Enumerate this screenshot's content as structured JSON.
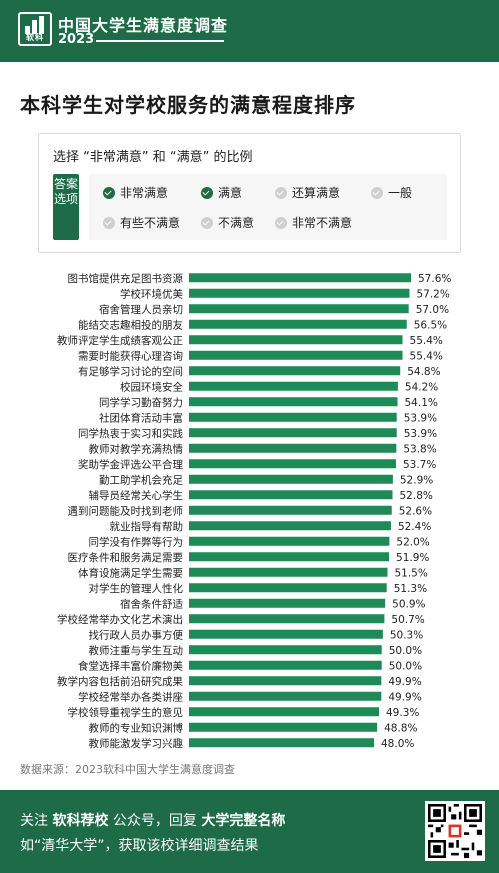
{
  "header": {
    "logo_text": "软科",
    "title": "中国大学生满意度调查",
    "year": "2023"
  },
  "main_title": "本科学生对学校服务的满意程度排序",
  "filter": {
    "question": "选择 “非常满意” 和 “满意” 的比例",
    "answer_tag": "答案选项",
    "options": [
      {
        "label": "非常满意",
        "checked": true
      },
      {
        "label": "满意",
        "checked": true
      },
      {
        "label": "还算满意",
        "checked": false
      },
      {
        "label": "一般",
        "checked": false
      },
      {
        "label": "有些不满意",
        "checked": false
      },
      {
        "label": "不满意",
        "checked": false
      },
      {
        "label": "非常不满意",
        "checked": false
      }
    ]
  },
  "chart_data": {
    "type": "bar",
    "orientation": "horizontal",
    "bar_color": "#1d8a57",
    "value_suffix": "%",
    "xlim": [
      0,
      57.6
    ],
    "categories": [
      "图书馆提供充足图书资源",
      "学校环境优美",
      "宿舍管理人员亲切",
      "能结交志趣相投的朋友",
      "教师评定学生成绩客观公正",
      "需要时能获得心理咨询",
      "有足够学习讨论的空间",
      "校园环境安全",
      "同学学习勤奋努力",
      "社团体育活动丰富",
      "同学热衷于实习和实践",
      "教师对教学充满热情",
      "奖助学金评选公平合理",
      "勤工助学机会充足",
      "辅导员经常关心学生",
      "遇到问题能及时找到老师",
      "就业指导有帮助",
      "同学没有作弊等行为",
      "医疗条件和服务满足需要",
      "体育设施满足学生需要",
      "对学生的管理人性化",
      "宿舍条件舒适",
      "学校经常举办文化艺术演出",
      "找行政人员办事方便",
      "教师注重与学生互动",
      "食堂选择丰富价廉物美",
      "教学内容包括前沿研究成果",
      "学校经常举办各类讲座",
      "学校领导重视学生的意见",
      "教师的专业知识渊博",
      "教师能激发学习兴趣"
    ],
    "values": [
      57.6,
      57.2,
      57.0,
      56.5,
      55.4,
      55.4,
      54.8,
      54.2,
      54.1,
      53.9,
      53.9,
      53.8,
      53.7,
      52.9,
      52.8,
      52.6,
      52.4,
      52.0,
      51.9,
      51.5,
      51.3,
      50.9,
      50.7,
      50.3,
      50.0,
      50.0,
      49.9,
      49.9,
      49.3,
      48.8,
      48.0
    ],
    "value_labels": [
      "57.6%",
      "57.2%",
      "57.0%",
      "56.5%",
      "55.4%",
      "55.4%",
      "54.8%",
      "54.2%",
      "54.1%",
      "53.9%",
      "53.9%",
      "53.8%",
      "53.7%",
      "52.9%",
      "52.8%",
      "52.6%",
      "52.4%",
      "52.0%",
      "51.9%",
      "51.5%",
      "51.3%",
      "50.9%",
      "50.7%",
      "50.3%",
      "50.0%",
      "50.0%",
      "49.9%",
      "49.9%",
      "49.3%",
      "48.8%",
      "48.0%"
    ]
  },
  "source": "数据来源：2023软科中国大学生满意度调查",
  "footer": {
    "line1_a": "关注",
    "line1_b": "软科荐校",
    "line1_c": "公众号，回复",
    "line1_d": "大学完整名称",
    "line2": "如“清华大学”，获取该校详细调查结果",
    "qr_label": "qr-code"
  }
}
